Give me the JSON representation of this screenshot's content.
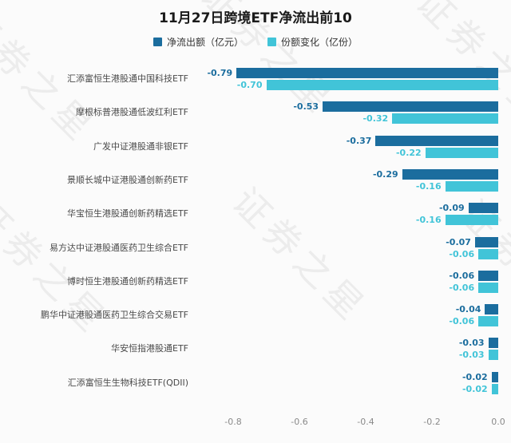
{
  "title": "11月27日跨境ETF净流出前10",
  "watermark": "证券之星",
  "chart_data": {
    "type": "bar",
    "orientation": "horizontal",
    "title": "11月27日跨境ETF净流出前10",
    "legend_position": "top",
    "grid": false,
    "categories": [
      "汇添富恒生港股通中国科技ETF",
      "摩根标普港股通低波红利ETF",
      "广发中证港股通非银ETF",
      "景顺长城中证港股通创新药ETF",
      "华宝恒生港股通创新药精选ETF",
      "易方达中证港股通医药卫生综合ETF",
      "博时恒生港股通创新药精选ETF",
      "鹏华中证港股通医药卫生综合交易ETF",
      "华安恒指港股通ETF",
      "汇添富恒生生物科技ETF(QDII)"
    ],
    "series": [
      {
        "name": "净流出额（亿元）",
        "color": "#1b6d9e",
        "values": [
          -0.79,
          -0.53,
          -0.37,
          -0.29,
          -0.09,
          -0.07,
          -0.06,
          -0.04,
          -0.03,
          -0.02
        ]
      },
      {
        "name": "份额变化（亿份）",
        "color": "#41c4d8",
        "values": [
          -0.7,
          -0.32,
          -0.22,
          -0.16,
          -0.16,
          -0.06,
          -0.06,
          -0.06,
          -0.03,
          -0.02
        ]
      }
    ],
    "xticks": [
      -0.8,
      -0.6,
      -0.4,
      -0.2,
      0.0
    ],
    "xlim": [
      -0.93,
      0
    ]
  }
}
